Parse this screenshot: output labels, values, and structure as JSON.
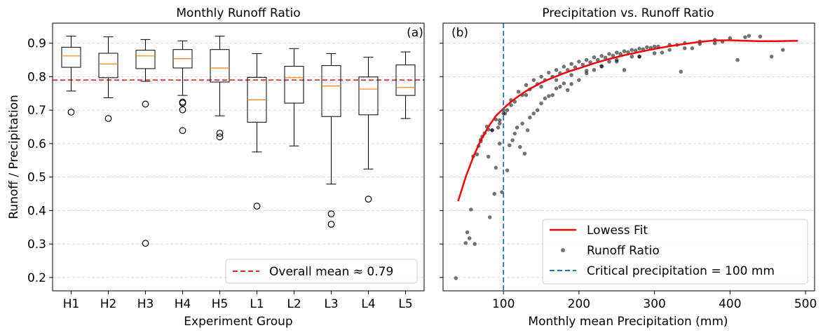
{
  "chart_data": [
    {
      "type": "box",
      "panel_label": "(a)",
      "title": "Monthly Runoff Ratio",
      "xlabel": "Experiment Group",
      "ylabel": "Runoff / Precipitation",
      "ylim": [
        0.16,
        0.96
      ],
      "yticks": [
        0.2,
        0.3,
        0.4,
        0.5,
        0.6,
        0.7,
        0.8,
        0.9
      ],
      "grid": "y-dashed",
      "categories": [
        "H1",
        "H2",
        "H3",
        "H4",
        "H5",
        "L1",
        "L2",
        "L3",
        "L4",
        "L5"
      ],
      "boxes": [
        {
          "whislo": 0.757,
          "q1": 0.828,
          "med": 0.862,
          "q3": 0.888,
          "whishi": 0.921,
          "fliers": [
            0.694
          ]
        },
        {
          "whislo": 0.737,
          "q1": 0.797,
          "med": 0.838,
          "q3": 0.87,
          "whishi": 0.919,
          "fliers": [
            0.675
          ]
        },
        {
          "whislo": 0.786,
          "q1": 0.824,
          "med": 0.862,
          "q3": 0.879,
          "whishi": 0.911,
          "fliers": [
            0.718,
            0.302
          ]
        },
        {
          "whislo": 0.744,
          "q1": 0.826,
          "med": 0.854,
          "q3": 0.881,
          "whishi": 0.907,
          "fliers": [
            0.724,
            0.721,
            0.701,
            0.639
          ]
        },
        {
          "whislo": 0.683,
          "q1": 0.784,
          "med": 0.826,
          "q3": 0.881,
          "whishi": 0.921,
          "fliers": [
            0.631,
            0.62
          ]
        },
        {
          "whislo": 0.575,
          "q1": 0.664,
          "med": 0.731,
          "q3": 0.798,
          "whishi": 0.869,
          "fliers": [
            0.413
          ]
        },
        {
          "whislo": 0.593,
          "q1": 0.721,
          "med": 0.797,
          "q3": 0.831,
          "whishi": 0.884,
          "fliers": []
        },
        {
          "whislo": 0.479,
          "q1": 0.681,
          "med": 0.772,
          "q3": 0.833,
          "whishi": 0.869,
          "fliers": [
            0.39,
            0.359
          ]
        },
        {
          "whislo": 0.524,
          "q1": 0.686,
          "med": 0.763,
          "q3": 0.799,
          "whishi": 0.858,
          "fliers": [
            0.434
          ]
        },
        {
          "whislo": 0.675,
          "q1": 0.744,
          "med": 0.768,
          "q3": 0.835,
          "whishi": 0.874,
          "fliers": []
        }
      ],
      "reference_line": {
        "y": 0.79,
        "style": "dashed",
        "color": "#d62728",
        "label": "Overall mean ≈ 0.79"
      },
      "legend_position": "lower-right",
      "colors": {
        "box": "#000000",
        "median": "#ff7f0e"
      }
    },
    {
      "type": "scatter",
      "panel_label": "(b)",
      "title": "Precipitation vs. Runoff Ratio",
      "xlabel": "Monthly mean Precipitation (mm)",
      "xlim": [
        20,
        512
      ],
      "xticks": [
        100,
        200,
        300,
        400,
        500
      ],
      "ylim": [
        0.16,
        0.96
      ],
      "grid": "y-dashed",
      "series": [
        {
          "name": "Lowess Fit",
          "kind": "line",
          "color": "#ff0000",
          "x": [
            40,
            50,
            60,
            70,
            80,
            90,
            100,
            110,
            120,
            130,
            140,
            150,
            160,
            170,
            180,
            190,
            200,
            220,
            240,
            260,
            280,
            300,
            320,
            340,
            360,
            380,
            400,
            420,
            440,
            460,
            490
          ],
          "y": [
            0.428,
            0.5,
            0.56,
            0.61,
            0.65,
            0.683,
            0.705,
            0.725,
            0.742,
            0.757,
            0.77,
            0.782,
            0.792,
            0.801,
            0.81,
            0.818,
            0.825,
            0.84,
            0.853,
            0.864,
            0.874,
            0.883,
            0.891,
            0.898,
            0.904,
            0.908,
            0.909,
            0.907,
            0.906,
            0.906,
            0.907
          ]
        },
        {
          "name": "Runoff Ratio",
          "kind": "scatter",
          "color": "#000000",
          "alpha": 0.55,
          "x": [
            37,
            50,
            52,
            55,
            57,
            60,
            62,
            65,
            67,
            70,
            72,
            75,
            78,
            80,
            82,
            85,
            88,
            90,
            93,
            95,
            98,
            102,
            105,
            108,
            112,
            115,
            118,
            122,
            125,
            128,
            132,
            135,
            140,
            145,
            150,
            155,
            160,
            165,
            170,
            175,
            180,
            185,
            190,
            200,
            210,
            220,
            230,
            240,
            250,
            260,
            270,
            280,
            300,
            320,
            335,
            350,
            380,
            410,
            455,
            470,
            95,
            100,
            110,
            120,
            130,
            140,
            150,
            160,
            170,
            180,
            190,
            200,
            210,
            220,
            230,
            240,
            250,
            260,
            270,
            280,
            290,
            300,
            320,
            340,
            360,
            380,
            400,
            420,
            440,
            70,
            80,
            90,
            100,
            110,
            130,
            150,
            170,
            190,
            210,
            230,
            250,
            280,
            310,
            340,
            85,
            95,
            105,
            115,
            125,
            135,
            145,
            155,
            165,
            175,
            185,
            195,
            205,
            215,
            225,
            235,
            245,
            255,
            265,
            275,
            285,
            295,
            305,
            330,
            360,
            390,
            425
          ],
          "y": [
            0.198,
            0.303,
            0.335,
            0.317,
            0.403,
            0.562,
            0.3,
            0.568,
            0.593,
            0.607,
            0.621,
            0.631,
            0.651,
            0.561,
            0.38,
            0.64,
            0.45,
            0.528,
            0.648,
            0.6,
            0.455,
            0.69,
            0.52,
            0.595,
            0.61,
            0.63,
            0.648,
            0.59,
            0.66,
            0.57,
            0.64,
            0.678,
            0.69,
            0.7,
            0.72,
            0.735,
            0.742,
            0.745,
            0.765,
            0.77,
            0.78,
            0.76,
            0.778,
            0.79,
            0.81,
            0.82,
            0.83,
            0.845,
            0.85,
            0.82,
            0.86,
            0.86,
            0.87,
            0.88,
            0.815,
            0.885,
            0.9,
            0.85,
            0.86,
            0.88,
            0.66,
            0.7,
            0.73,
            0.755,
            0.775,
            0.79,
            0.8,
            0.812,
            0.82,
            0.83,
            0.838,
            0.845,
            0.85,
            0.858,
            0.862,
            0.868,
            0.872,
            0.876,
            0.88,
            0.884,
            0.888,
            0.89,
            0.895,
            0.9,
            0.905,
            0.91,
            0.915,
            0.918,
            0.92,
            0.612,
            0.642,
            0.672,
            0.69,
            0.715,
            0.745,
            0.77,
            0.79,
            0.805,
            0.818,
            0.832,
            0.845,
            0.86,
            0.872,
            0.885,
            0.64,
            0.67,
            0.7,
            0.725,
            0.745,
            0.762,
            0.778,
            0.79,
            0.8,
            0.81,
            0.82,
            0.828,
            0.836,
            0.843,
            0.85,
            0.857,
            0.863,
            0.868,
            0.873,
            0.878,
            0.882,
            0.886,
            0.89,
            0.895,
            0.898,
            0.905,
            0.922
          ]
        }
      ],
      "reference_line": {
        "x": 100,
        "style": "dashed",
        "color": "#1f77b4",
        "label": "Critical precipitation = 100 mm"
      },
      "legend": [
        "Lowess Fit",
        "Runoff Ratio",
        "Critical precipitation = 100 mm"
      ],
      "legend_position": "lower-right"
    }
  ]
}
